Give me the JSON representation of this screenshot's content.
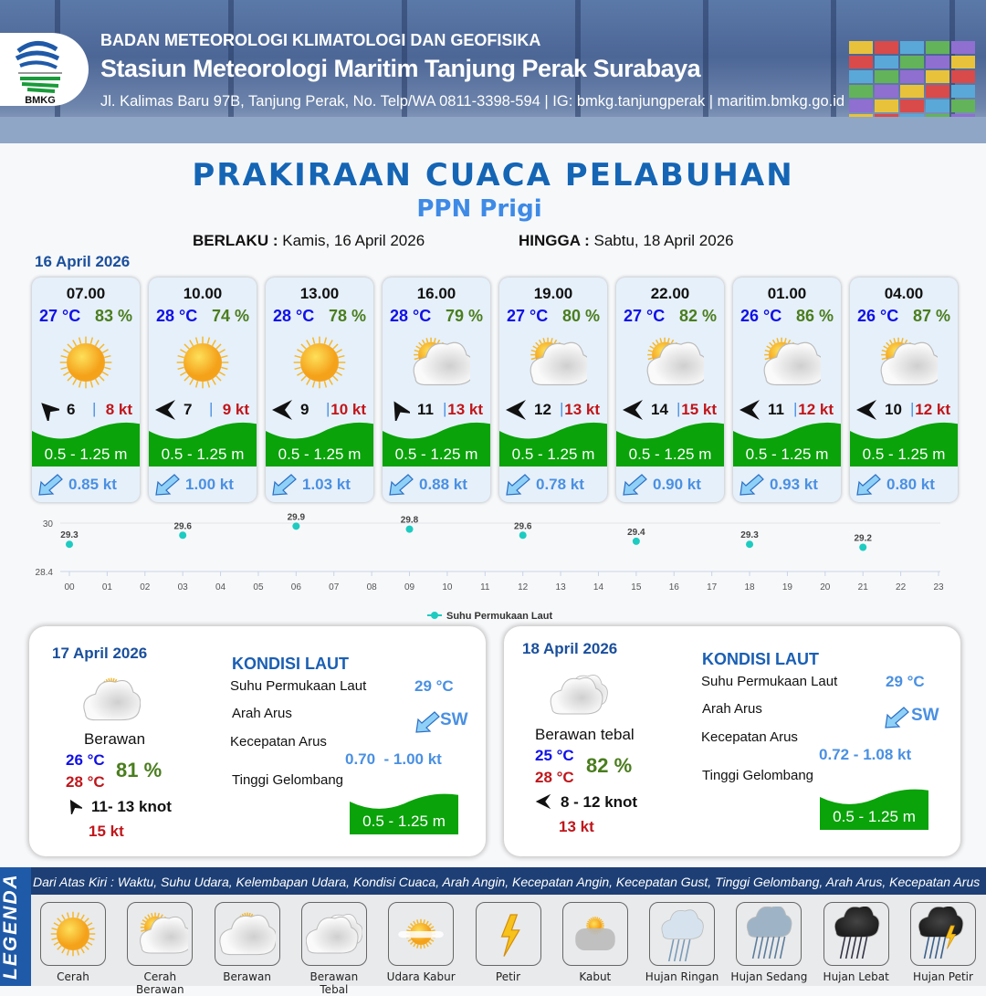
{
  "header": {
    "org": "BADAN METEOROLOGI KLIMATOLOGI DAN GEOFISIKA",
    "station": "Stasiun Meteorologi Maritim Tanjung Perak Surabaya",
    "contact": "Jl. Kalimas Baru 97B, Tanjung Perak, No. Telp/WA 0811-3398-594 | IG: bmkg.tanjungperak | maritim.bmkg.go.id",
    "logo_text": "BMKG"
  },
  "title": "PRAKIRAAN CUACA PELABUHAN",
  "port": "PPN Prigi",
  "validity": {
    "from_label": "BERLAKU :",
    "from": "Kamis, 16 April 2026",
    "to_label": "HINGGA :",
    "to": "Sabtu, 18 April 2026"
  },
  "day1_date": "16 April 2026",
  "forecast": [
    {
      "time": "07.00",
      "temp": "27 °C",
      "hum": "83 %",
      "weather": "cerah",
      "wind_dir_deg": 45,
      "wind": "6",
      "gust": "8 kt",
      "wave": "0.5 - 1.25 m",
      "current": "0.85 kt"
    },
    {
      "time": "10.00",
      "temp": "28 °C",
      "hum": "74 %",
      "weather": "cerah",
      "wind_dir_deg": 90,
      "wind": "7",
      "gust": "9 kt",
      "wave": "0.5 - 1.25 m",
      "current": "1.00 kt"
    },
    {
      "time": "13.00",
      "temp": "28 °C",
      "hum": "78 %",
      "weather": "cerah",
      "wind_dir_deg": 90,
      "wind": "9",
      "gust": "10 kt",
      "wave": "0.5 - 1.25 m",
      "current": "1.03 kt"
    },
    {
      "time": "16.00",
      "temp": "28 °C",
      "hum": "79 %",
      "weather": "cerah-berawan",
      "wind_dir_deg": 30,
      "wind": "11",
      "gust": "13 kt",
      "wave": "0.5 - 1.25 m",
      "current": "0.88 kt"
    },
    {
      "time": "19.00",
      "temp": "27 °C",
      "hum": "80 %",
      "weather": "cerah-berawan",
      "wind_dir_deg": 90,
      "wind": "12",
      "gust": "13 kt",
      "wave": "0.5 - 1.25 m",
      "current": "0.78 kt"
    },
    {
      "time": "22.00",
      "temp": "27 °C",
      "hum": "82 %",
      "weather": "cerah-berawan",
      "wind_dir_deg": 90,
      "wind": "14",
      "gust": "15 kt",
      "wave": "0.5 - 1.25 m",
      "current": "0.90 kt"
    },
    {
      "time": "01.00",
      "temp": "26 °C",
      "hum": "86 %",
      "weather": "cerah-berawan",
      "wind_dir_deg": 90,
      "wind": "11",
      "gust": "12 kt",
      "wave": "0.5 - 1.25 m",
      "current": "0.93 kt"
    },
    {
      "time": "04.00",
      "temp": "26 °C",
      "hum": "87 %",
      "weather": "cerah-berawan",
      "wind_dir_deg": 90,
      "wind": "10",
      "gust": "12 kt",
      "wave": "0.5 - 1.25 m",
      "current": "0.80 kt"
    }
  ],
  "chart_data": {
    "type": "scatter",
    "series": [
      {
        "name": "Suhu Permukaan Laut",
        "color": "#1ecbc0",
        "x": [
          "00",
          "03",
          "06",
          "09",
          "12",
          "15",
          "18",
          "21"
        ],
        "y": [
          29.3,
          29.6,
          29.9,
          29.8,
          29.6,
          29.4,
          29.3,
          29.2
        ]
      }
    ],
    "x_ticks": [
      "00",
      "01",
      "02",
      "03",
      "04",
      "05",
      "06",
      "07",
      "08",
      "09",
      "10",
      "11",
      "12",
      "13",
      "14",
      "15",
      "16",
      "17",
      "18",
      "19",
      "20",
      "21",
      "22",
      "23"
    ],
    "y_ticks": [
      "30",
      "28.4"
    ],
    "ylim": [
      28.4,
      30
    ],
    "legend": "bottom",
    "data_labels": true
  },
  "days": [
    {
      "date": "17 April 2026",
      "weather": "berawan",
      "condition": "Berawan",
      "tmin": "26 °C",
      "tmax": "28 °C",
      "hum": "81 %",
      "wind_dir_deg": 30,
      "wind": "11- 13 knot",
      "gust": "15 kt",
      "sea_title": "KONDISI LAUT",
      "sst_label": "Suhu Permukaan Laut",
      "sst": "29 °C",
      "cur_dir_label": "Arah Arus",
      "cur_dir": "SW",
      "cur_spd_label": "Kecepatan Arus",
      "cur_spd": "0.70  - 1.00 kt",
      "wave_label": "Tinggi Gelombang",
      "wave": "0.5 - 1.25 m"
    },
    {
      "date": "18 April 2026",
      "weather": "berawan-tebal",
      "condition": "Berawan tebal",
      "tmin": "25 °C",
      "tmax": "28 °C",
      "hum": "82 %",
      "wind_dir_deg": 90,
      "wind": "8  - 12 knot",
      "gust": "13 kt",
      "sea_title": "KONDISI LAUT",
      "sst_label": "Suhu Permukaan Laut",
      "sst": "29 °C",
      "cur_dir_label": "Arah Arus",
      "cur_dir": "SW",
      "cur_spd_label": "Kecepatan Arus",
      "cur_spd": "0.72 - 1.08 kt",
      "wave_label": "Tinggi Gelombang",
      "wave": "0.5 - 1.25 m"
    }
  ],
  "legend": {
    "title": "LEGENDA",
    "description": "Dari Atas Kiri : Waktu, Suhu Udara, Kelembapan Udara, Kondisi Cuaca, Arah Angin, Kecepatan Angin, Kecepatan Gust, Tinggi Gelombang, Arah Arus, Kecepatan Arus",
    "items": [
      {
        "label": "Cerah",
        "icon": "cerah"
      },
      {
        "label": "Cerah Berawan",
        "icon": "cerah-berawan"
      },
      {
        "label": "Berawan",
        "icon": "berawan"
      },
      {
        "label": "Berawan Tebal",
        "icon": "berawan-tebal"
      },
      {
        "label": "Udara Kabur",
        "icon": "udara-kabur"
      },
      {
        "label": "Petir",
        "icon": "petir"
      },
      {
        "label": "Kabut",
        "icon": "kabut"
      },
      {
        "label": "Hujan Ringan",
        "icon": "hujan-ringan"
      },
      {
        "label": "Hujan Sedang",
        "icon": "hujan-sedang"
      },
      {
        "label": "Hujan Lebat",
        "icon": "hujan-lebat"
      },
      {
        "label": "Hujan Petir",
        "icon": "hujan-petir"
      }
    ]
  },
  "colors": {
    "wave": "#0aa30a",
    "title": "#1565b5",
    "wind_gust": "#c0161b",
    "temp": "#1010e8",
    "humidity": "#4a7d1e",
    "current": "#4a90e2"
  }
}
